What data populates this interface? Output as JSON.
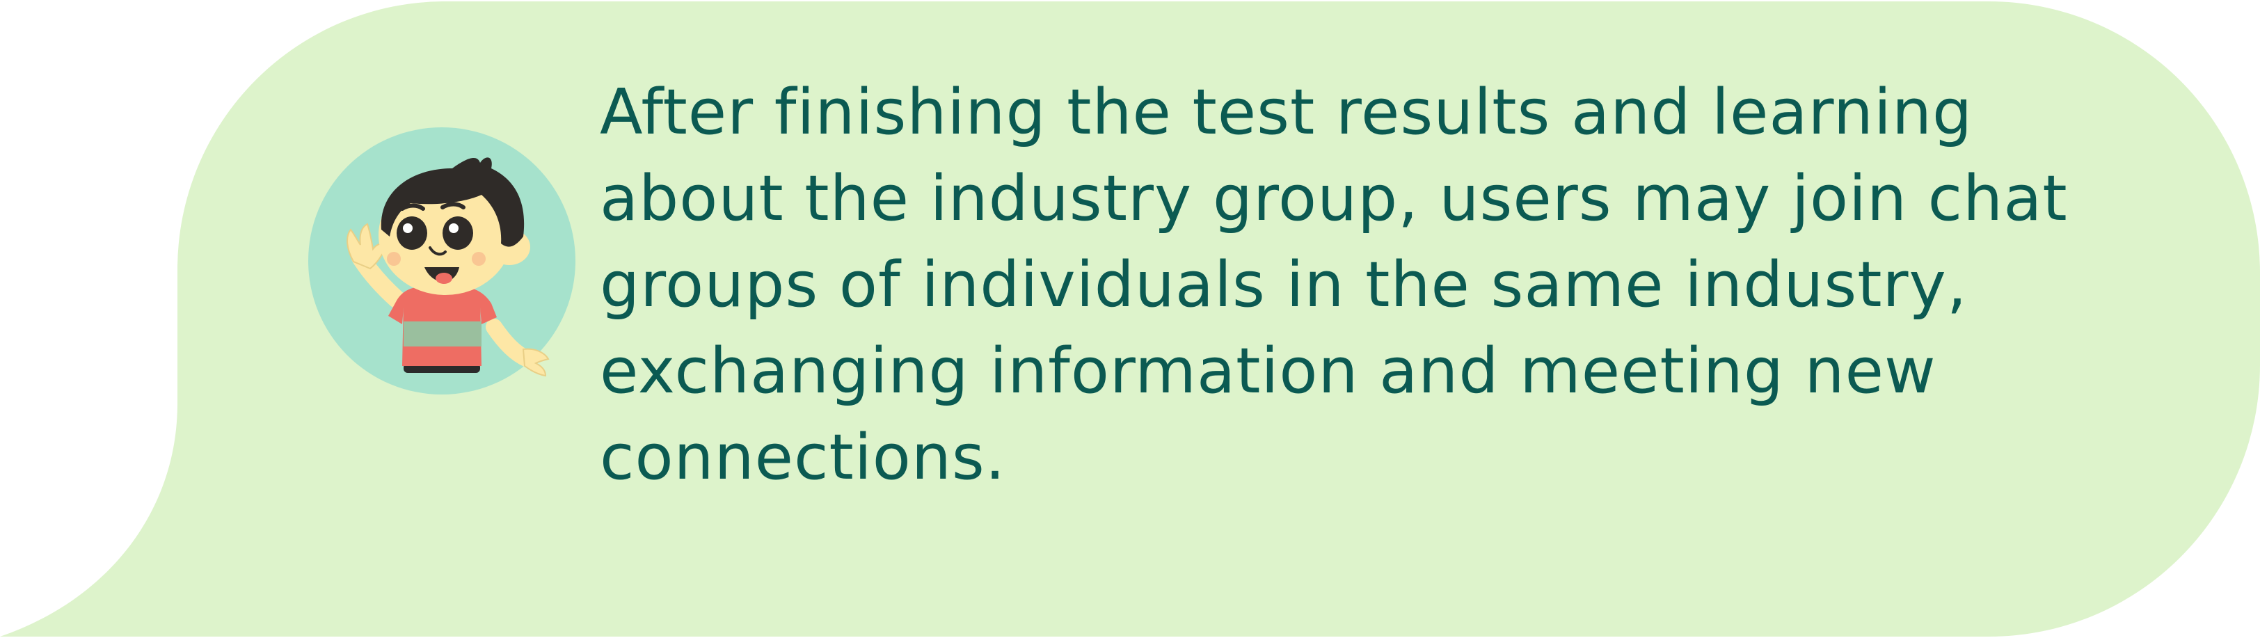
{
  "colors": {
    "bubble_fill": "#ddf3cb",
    "avatar_circle": "#a6e2cc",
    "text": "#0b5a52"
  },
  "avatar": {
    "icon": "waving-boy-icon"
  },
  "message": {
    "text": "After finishing the test results and learning about the industry group, users may join chat groups of individuals in the same industry, exchanging information and meeting new connections."
  }
}
